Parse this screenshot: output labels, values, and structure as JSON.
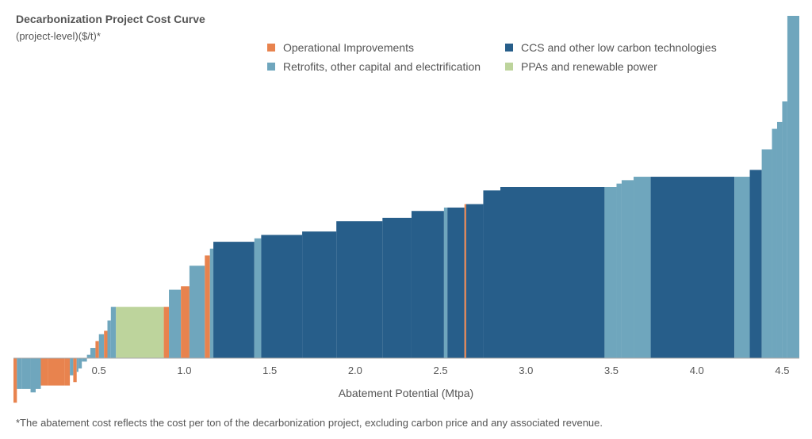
{
  "title": "Decarbonization Project Cost Curve",
  "subtitle": "(project-level)($/t)*",
  "footnote": "*The abatement cost reflects the cost per ton of the decarbonization project, excluding carbon price and any associated revenue.",
  "colors": {
    "Operational Improvements": "#e8834e",
    "Retrofits, other capital and electrification": "#6fa6bd",
    "CCS and other low carbon technologies": "#275e8a",
    "PPAs and renewable power": "#bdd49c"
  },
  "chart_data": {
    "type": "bar",
    "subtype": "marginal-abatement-cost-curve",
    "xlabel": "Abatement Potential (Mtpa)",
    "ylabel": "",
    "xlim": [
      0,
      4.6
    ],
    "ylim": [
      -0.13,
      1.0
    ],
    "y_axis_labels_shown": false,
    "x_ticks": [
      "0.5",
      "1.0",
      "1.5",
      "2.0",
      "2.5",
      "3.0",
      "3.5",
      "4.0",
      "4.5"
    ],
    "x_tick_values": [
      0.5,
      1.0,
      1.5,
      2.0,
      2.5,
      3.0,
      3.5,
      4.0,
      4.5
    ],
    "legend": {
      "placement": "top",
      "entries": [
        {
          "label": "Operational Improvements",
          "category": "Operational Improvements"
        },
        {
          "label": "CCS and other low carbon technologies",
          "category": "CCS and other low carbon technologies"
        },
        {
          "label": "Retrofits, other capital and electrification",
          "category": "Retrofits, other capital and electrification"
        },
        {
          "label": "PPAs and renewable power",
          "category": "PPAs and renewable power"
        }
      ]
    },
    "note": "Y values are relative abatement cost (unlabeled axis, normalized to max curve height).",
    "bars": [
      {
        "x0": 0.0,
        "x1": 0.02,
        "y": -0.13,
        "category": "Operational Improvements"
      },
      {
        "x0": 0.02,
        "x1": 0.05,
        "y": -0.09,
        "category": "Retrofits, other capital and electrification"
      },
      {
        "x0": 0.05,
        "x1": 0.1,
        "y": -0.09,
        "category": "Retrofits, other capital and electrification"
      },
      {
        "x0": 0.1,
        "x1": 0.13,
        "y": -0.1,
        "category": "Retrofits, other capital and electrification"
      },
      {
        "x0": 0.13,
        "x1": 0.16,
        "y": -0.09,
        "category": "Retrofits, other capital and electrification"
      },
      {
        "x0": 0.16,
        "x1": 0.2,
        "y": -0.08,
        "category": "Operational Improvements"
      },
      {
        "x0": 0.2,
        "x1": 0.3,
        "y": -0.08,
        "category": "Operational Improvements"
      },
      {
        "x0": 0.3,
        "x1": 0.33,
        "y": -0.08,
        "category": "Operational Improvements"
      },
      {
        "x0": 0.33,
        "x1": 0.35,
        "y": -0.05,
        "category": "Retrofits, other capital and electrification"
      },
      {
        "x0": 0.35,
        "x1": 0.37,
        "y": -0.07,
        "category": "Operational Improvements"
      },
      {
        "x0": 0.37,
        "x1": 0.38,
        "y": -0.04,
        "category": "Retrofits, other capital and electrification"
      },
      {
        "x0": 0.38,
        "x1": 0.4,
        "y": -0.03,
        "category": "Retrofits, other capital and electrification"
      },
      {
        "x0": 0.4,
        "x1": 0.43,
        "y": -0.01,
        "category": "Retrofits, other capital and electrification"
      },
      {
        "x0": 0.43,
        "x1": 0.45,
        "y": 0.01,
        "category": "Retrofits, other capital and electrification"
      },
      {
        "x0": 0.45,
        "x1": 0.48,
        "y": 0.03,
        "category": "Retrofits, other capital and electrification"
      },
      {
        "x0": 0.48,
        "x1": 0.5,
        "y": 0.05,
        "category": "Operational Improvements"
      },
      {
        "x0": 0.5,
        "x1": 0.53,
        "y": 0.07,
        "category": "Retrofits, other capital and electrification"
      },
      {
        "x0": 0.53,
        "x1": 0.55,
        "y": 0.08,
        "category": "Operational Improvements"
      },
      {
        "x0": 0.55,
        "x1": 0.57,
        "y": 0.11,
        "category": "Retrofits, other capital and electrification"
      },
      {
        "x0": 0.57,
        "x1": 0.6,
        "y": 0.15,
        "category": "Retrofits, other capital and electrification"
      },
      {
        "x0": 0.6,
        "x1": 0.88,
        "y": 0.15,
        "category": "PPAs and renewable power"
      },
      {
        "x0": 0.88,
        "x1": 0.91,
        "y": 0.15,
        "category": "Operational Improvements"
      },
      {
        "x0": 0.91,
        "x1": 0.98,
        "y": 0.2,
        "category": "Retrofits, other capital and electrification"
      },
      {
        "x0": 0.98,
        "x1": 1.03,
        "y": 0.21,
        "category": "Operational Improvements"
      },
      {
        "x0": 1.03,
        "x1": 1.12,
        "y": 0.27,
        "category": "Retrofits, other capital and electrification"
      },
      {
        "x0": 1.12,
        "x1": 1.15,
        "y": 0.3,
        "category": "Operational Improvements"
      },
      {
        "x0": 1.15,
        "x1": 1.17,
        "y": 0.32,
        "category": "Retrofits, other capital and electrification"
      },
      {
        "x0": 1.17,
        "x1": 1.41,
        "y": 0.34,
        "category": "CCS and other low carbon technologies"
      },
      {
        "x0": 1.41,
        "x1": 1.45,
        "y": 0.35,
        "category": "Retrofits, other capital and electrification"
      },
      {
        "x0": 1.45,
        "x1": 1.69,
        "y": 0.36,
        "category": "CCS and other low carbon technologies"
      },
      {
        "x0": 1.69,
        "x1": 1.89,
        "y": 0.37,
        "category": "CCS and other low carbon technologies"
      },
      {
        "x0": 1.89,
        "x1": 2.16,
        "y": 0.4,
        "category": "CCS and other low carbon technologies"
      },
      {
        "x0": 2.16,
        "x1": 2.33,
        "y": 0.41,
        "category": "CCS and other low carbon technologies"
      },
      {
        "x0": 2.33,
        "x1": 2.52,
        "y": 0.43,
        "category": "CCS and other low carbon technologies"
      },
      {
        "x0": 2.52,
        "x1": 2.54,
        "y": 0.44,
        "category": "Retrofits, other capital and electrification"
      },
      {
        "x0": 2.54,
        "x1": 2.64,
        "y": 0.44,
        "category": "CCS and other low carbon technologies"
      },
      {
        "x0": 2.64,
        "x1": 2.65,
        "y": 0.45,
        "category": "Operational Improvements"
      },
      {
        "x0": 2.65,
        "x1": 2.75,
        "y": 0.45,
        "category": "CCS and other low carbon technologies"
      },
      {
        "x0": 2.75,
        "x1": 2.85,
        "y": 0.49,
        "category": "CCS and other low carbon technologies"
      },
      {
        "x0": 2.85,
        "x1": 3.46,
        "y": 0.5,
        "category": "CCS and other low carbon technologies"
      },
      {
        "x0": 3.46,
        "x1": 3.53,
        "y": 0.5,
        "category": "Retrofits, other capital and electrification"
      },
      {
        "x0": 3.53,
        "x1": 3.56,
        "y": 0.51,
        "category": "Retrofits, other capital and electrification"
      },
      {
        "x0": 3.56,
        "x1": 3.63,
        "y": 0.52,
        "category": "Retrofits, other capital and electrification"
      },
      {
        "x0": 3.63,
        "x1": 3.73,
        "y": 0.53,
        "category": "Retrofits, other capital and electrification"
      },
      {
        "x0": 3.73,
        "x1": 4.22,
        "y": 0.53,
        "category": "CCS and other low carbon technologies"
      },
      {
        "x0": 4.22,
        "x1": 4.31,
        "y": 0.53,
        "category": "Retrofits, other capital and electrification"
      },
      {
        "x0": 4.31,
        "x1": 4.38,
        "y": 0.55,
        "category": "CCS and other low carbon technologies"
      },
      {
        "x0": 4.38,
        "x1": 4.44,
        "y": 0.61,
        "category": "Retrofits, other capital and electrification"
      },
      {
        "x0": 4.44,
        "x1": 4.47,
        "y": 0.67,
        "category": "Retrofits, other capital and electrification"
      },
      {
        "x0": 4.47,
        "x1": 4.5,
        "y": 0.69,
        "category": "Retrofits, other capital and electrification"
      },
      {
        "x0": 4.5,
        "x1": 4.53,
        "y": 0.75,
        "category": "Retrofits, other capital and electrification"
      },
      {
        "x0": 4.53,
        "x1": 4.6,
        "y": 1.0,
        "category": "Retrofits, other capital and electrification"
      }
    ]
  }
}
